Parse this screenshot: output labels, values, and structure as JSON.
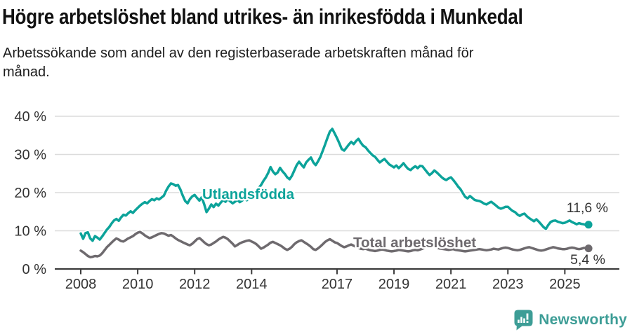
{
  "header": {
    "title": "Högre arbetslöshet bland utrikes- än inrikesfödda i Munkedal",
    "subtitle_lines": [
      "Arbetssökande som andel av den registerbaserade arbetskraften månad för",
      "månad."
    ]
  },
  "footer": {
    "brand": "Newsworthy",
    "brand_color": "#3d9d96",
    "logo_icon": "speech-bubble-bar-chart-icon"
  },
  "colors": {
    "series_foreign_born": "#0ca39a",
    "series_total": "#6e6a6e",
    "grid": "#dcdcdc",
    "axis": "#3b3b3b",
    "tick_text": "#333333",
    "title_text": "#111111"
  },
  "chart_data": {
    "type": "line",
    "title": "Högre arbetslöshet bland utrikes- än inrikesfödda i Munkedal",
    "subtitle": "Arbetssökande som andel av den registerbaserade arbetskraften månad för månad.",
    "xlabel": "",
    "ylabel": "",
    "unit": "%",
    "grid": "horizontal",
    "legend": "inline-labels",
    "x_axis": {
      "range_years": [
        2008,
        2025.9
      ],
      "ticks": [
        2008,
        2010,
        2012,
        2014,
        2017,
        2019,
        2021,
        2023,
        2025
      ],
      "tick_labels": [
        "2008",
        "2010",
        "2012",
        "2014",
        "2017",
        "2019",
        "2021",
        "2023",
        "2025"
      ]
    },
    "y_axis": {
      "range": [
        0,
        40
      ],
      "ticks": [
        0,
        10,
        20,
        30,
        40
      ],
      "tick_labels": [
        "0 %",
        "10 %",
        "20 %",
        "30 %",
        "40 %"
      ]
    },
    "x_start_year": 2008,
    "points_per_year": 12,
    "series": [
      {
        "name": "Utlandsfödda",
        "color": "#0ca39a",
        "end_label": "11,6 %",
        "end_value": 11.6,
        "values": [
          9.3,
          7.9,
          9.4,
          9.6,
          8.0,
          7.4,
          8.6,
          8.2,
          7.7,
          8.5,
          9.4,
          10.3,
          11.0,
          11.9,
          12.7,
          13.1,
          12.6,
          13.5,
          14.2,
          14.0,
          14.6,
          15.1,
          14.7,
          15.4,
          16.0,
          16.6,
          17.1,
          17.5,
          17.2,
          17.8,
          18.3,
          18.0,
          18.5,
          18.2,
          18.7,
          19.2,
          20.5,
          21.6,
          22.4,
          22.2,
          21.8,
          22.0,
          20.8,
          19.2,
          17.8,
          17.2,
          18.3,
          19.0,
          19.4,
          18.6,
          17.9,
          18.8,
          17.0,
          14.9,
          15.8,
          16.9,
          16.2,
          17.1,
          16.6,
          17.4,
          18.1,
          17.6,
          18.3,
          17.7,
          17.2,
          17.6,
          18.1,
          17.5,
          17.9,
          18.4,
          18.0,
          18.6,
          18.8,
          19.5,
          20.4,
          21.2,
          22.0,
          23.1,
          24.0,
          25.2,
          26.7,
          25.5,
          24.8,
          25.3,
          26.5,
          25.6,
          24.9,
          24.0,
          23.5,
          24.4,
          25.8,
          27.2,
          28.1,
          27.3,
          26.6,
          27.9,
          28.6,
          29.2,
          27.9,
          27.2,
          28.2,
          29.4,
          31.0,
          32.7,
          34.4,
          36.0,
          36.7,
          35.5,
          34.3,
          32.9,
          31.4,
          31.0,
          31.8,
          32.6,
          33.3,
          32.7,
          33.5,
          34.1,
          33.1,
          32.3,
          31.9,
          31.1,
          30.4,
          29.8,
          29.4,
          28.6,
          27.9,
          28.4,
          28.8,
          28.1,
          27.4,
          27.0,
          26.6,
          27.1,
          26.4,
          27.0,
          27.7,
          26.9,
          26.2,
          25.9,
          26.5,
          26.9,
          26.4,
          27.0,
          26.9,
          26.1,
          25.3,
          24.6,
          25.1,
          25.8,
          25.3,
          24.7,
          24.1,
          23.6,
          23.3,
          23.7,
          24.0,
          23.3,
          22.5,
          21.6,
          20.9,
          19.9,
          18.9,
          18.5,
          19.1,
          18.6,
          18.1,
          17.9,
          17.8,
          17.5,
          17.1,
          16.9,
          17.3,
          17.6,
          17.1,
          16.6,
          16.1,
          15.8,
          16.0,
          16.3,
          16.3,
          15.7,
          15.2,
          14.9,
          14.3,
          13.9,
          14.3,
          14.5,
          13.8,
          13.3,
          12.9,
          12.5,
          13.0,
          12.4,
          11.7,
          11.0,
          10.5,
          11.5,
          12.3,
          12.6,
          12.7,
          12.4,
          12.2,
          12.0,
          12.1,
          12.4,
          12.7,
          12.3,
          12.0,
          11.7,
          12.0,
          11.8,
          11.7,
          11.5,
          11.6
        ]
      },
      {
        "name": "Total arbetslöshet",
        "color": "#6e6a6e",
        "end_label": "5,4 %",
        "end_value": 5.4,
        "values": [
          4.8,
          4.4,
          3.9,
          3.4,
          3.1,
          3.2,
          3.4,
          3.3,
          3.5,
          4.1,
          4.9,
          5.7,
          6.3,
          6.9,
          7.5,
          8.0,
          7.7,
          7.3,
          7.2,
          7.6,
          8.0,
          8.3,
          8.6,
          9.1,
          9.5,
          9.7,
          9.3,
          8.8,
          8.4,
          8.1,
          8.3,
          8.6,
          8.9,
          9.2,
          9.4,
          9.3,
          9.0,
          8.7,
          8.9,
          8.5,
          8.0,
          7.6,
          7.3,
          7.0,
          6.7,
          6.4,
          6.2,
          6.6,
          7.2,
          7.8,
          8.1,
          7.6,
          7.0,
          6.5,
          6.2,
          6.4,
          6.8,
          7.2,
          7.7,
          8.1,
          8.4,
          8.2,
          7.8,
          7.2,
          6.6,
          5.9,
          6.3,
          6.7,
          7.0,
          7.2,
          7.4,
          7.5,
          7.2,
          6.9,
          6.5,
          5.9,
          5.3,
          5.6,
          6.0,
          6.4,
          6.9,
          7.1,
          6.8,
          6.5,
          6.2,
          5.8,
          5.3,
          5.0,
          5.3,
          5.8,
          6.5,
          7.0,
          7.3,
          7.5,
          7.1,
          6.7,
          6.3,
          5.8,
          5.2,
          5.0,
          5.4,
          5.9,
          6.5,
          7.1,
          7.5,
          7.8,
          7.4,
          7.0,
          6.8,
          6.4,
          6.0,
          5.7,
          5.9,
          6.2,
          6.4,
          6.1,
          5.8,
          5.5,
          5.3,
          5.2,
          5.3,
          5.1,
          4.9,
          4.8,
          4.7,
          4.8,
          5.0,
          5.1,
          5.0,
          4.8,
          4.7,
          4.6,
          4.7,
          4.8,
          5.0,
          4.9,
          4.8,
          4.7,
          4.6,
          4.7,
          4.9,
          5.0,
          4.9,
          5.1,
          5.3,
          5.6,
          6.0,
          6.2,
          6.0,
          5.8,
          5.6,
          5.4,
          5.3,
          5.2,
          5.1,
          5.0,
          5.1,
          5.2,
          5.0,
          4.9,
          4.8,
          4.7,
          4.6,
          4.7,
          4.8,
          4.9,
          5.0,
          5.1,
          5.2,
          5.1,
          5.0,
          4.9,
          5.0,
          5.1,
          5.3,
          5.2,
          5.1,
          5.3,
          5.5,
          5.6,
          5.5,
          5.3,
          5.1,
          5.0,
          4.9,
          5.0,
          5.2,
          5.4,
          5.6,
          5.7,
          5.5,
          5.3,
          5.1,
          4.9,
          4.8,
          4.9,
          5.1,
          5.3,
          5.5,
          5.7,
          5.6,
          5.4,
          5.3,
          5.2,
          5.2,
          5.3,
          5.5,
          5.6,
          5.5,
          5.3,
          5.2,
          5.3,
          5.5,
          5.5,
          5.4
        ]
      }
    ]
  }
}
